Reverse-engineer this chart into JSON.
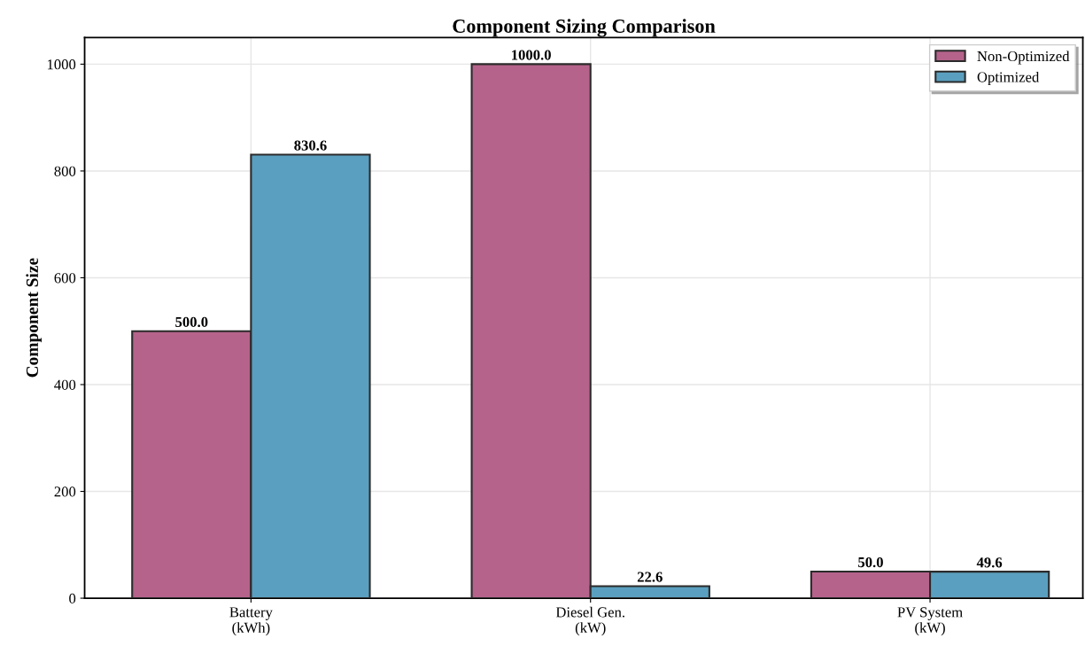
{
  "chart_data": {
    "type": "bar",
    "title": "Component Sizing Comparison",
    "ylabel": "Component Size",
    "categories": [
      "Battery\n(kWh)",
      "Diesel Gen.\n(kW)",
      "PV System\n(kW)"
    ],
    "series": [
      {
        "name": "Non-Optimized",
        "color": "#b5638b",
        "values": [
          500.0,
          1000.0,
          50.0
        ],
        "value_labels": [
          "500.0",
          "1000.0",
          "50.0"
        ]
      },
      {
        "name": "Optimized",
        "color": "#5a9fbf",
        "values": [
          830.6,
          22.6,
          49.6
        ],
        "value_labels": [
          "830.6",
          "22.6",
          "49.6"
        ]
      }
    ],
    "ylim": [
      0,
      1050
    ],
    "yticks": [
      0,
      200,
      400,
      600,
      800,
      1000
    ],
    "grid": true,
    "legend": "top right"
  }
}
